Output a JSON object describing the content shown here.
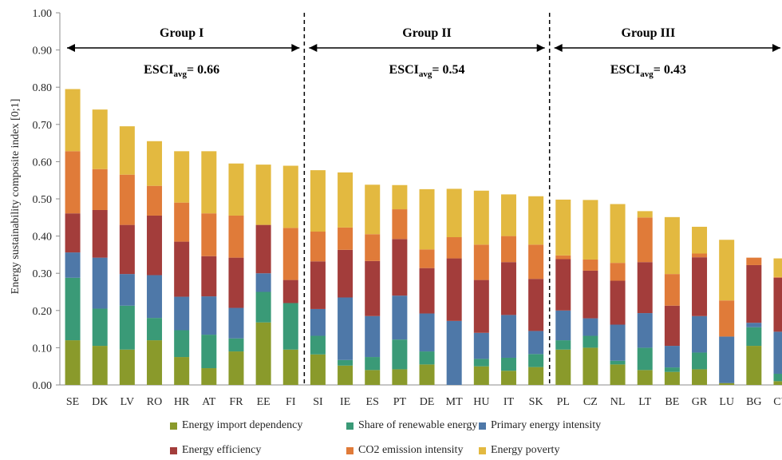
{
  "chart_data": {
    "type": "bar",
    "stacked": true,
    "ylabel": "Energy sustainability composite index [0;1]",
    "ylim": [
      0,
      1.0
    ],
    "yticks": [
      "0.00",
      "0.10",
      "0.20",
      "0.30",
      "0.40",
      "0.50",
      "0.60",
      "0.70",
      "0.80",
      "0.90",
      "1.00"
    ],
    "grid": false,
    "legend_position": "bottom",
    "categories": [
      "SE",
      "DK",
      "LV",
      "RO",
      "HR",
      "AT",
      "FR",
      "EE",
      "FI",
      "SI",
      "IE",
      "ES",
      "PT",
      "DE",
      "MT",
      "HU",
      "IT",
      "SK",
      "PL",
      "CZ",
      "NL",
      "LT",
      "BE",
      "GR",
      "LU",
      "BG",
      "CY"
    ],
    "series": [
      {
        "name": "Energy import dependency",
        "color": "#8a9a2b",
        "values": [
          0.12,
          0.105,
          0.095,
          0.12,
          0.075,
          0.045,
          0.09,
          0.168,
          0.095,
          0.082,
          0.052,
          0.04,
          0.042,
          0.055,
          0.0,
          0.05,
          0.038,
          0.048,
          0.095,
          0.1,
          0.055,
          0.04,
          0.035,
          0.042,
          0.005,
          0.105,
          0.01
        ]
      },
      {
        "name": "Share of renewable energy",
        "color": "#3a9a77",
        "values": [
          0.168,
          0.1,
          0.118,
          0.06,
          0.072,
          0.09,
          0.035,
          0.082,
          0.125,
          0.05,
          0.015,
          0.035,
          0.08,
          0.035,
          0.0,
          0.02,
          0.035,
          0.035,
          0.025,
          0.032,
          0.01,
          0.06,
          0.012,
          0.045,
          0.0,
          0.05,
          0.02
        ]
      },
      {
        "name": "Primary energy intensity",
        "color": "#4e78a8",
        "values": [
          0.068,
          0.137,
          0.085,
          0.115,
          0.09,
          0.103,
          0.082,
          0.05,
          0.0,
          0.072,
          0.168,
          0.11,
          0.118,
          0.102,
          0.172,
          0.07,
          0.115,
          0.062,
          0.08,
          0.047,
          0.097,
          0.093,
          0.058,
          0.098,
          0.125,
          0.012,
          0.113
        ]
      },
      {
        "name": "Energy efficiency",
        "color": "#a33d3b",
        "values": [
          0.105,
          0.128,
          0.132,
          0.16,
          0.148,
          0.108,
          0.135,
          0.13,
          0.062,
          0.128,
          0.128,
          0.148,
          0.152,
          0.122,
          0.168,
          0.142,
          0.142,
          0.14,
          0.138,
          0.128,
          0.118,
          0.137,
          0.108,
          0.158,
          0.0,
          0.155,
          0.145
        ]
      },
      {
        "name": "CO2 emission intensity",
        "color": "#e07b39",
        "values": [
          0.167,
          0.11,
          0.135,
          0.08,
          0.105,
          0.115,
          0.113,
          0.0,
          0.14,
          0.08,
          0.06,
          0.072,
          0.08,
          0.05,
          0.057,
          0.095,
          0.07,
          0.092,
          0.01,
          0.03,
          0.048,
          0.12,
          0.085,
          0.01,
          0.097,
          0.02,
          0.002
        ]
      },
      {
        "name": "Energy poverty",
        "color": "#e3b940",
        "values": [
          0.167,
          0.16,
          0.13,
          0.12,
          0.138,
          0.167,
          0.14,
          0.162,
          0.167,
          0.165,
          0.148,
          0.133,
          0.065,
          0.162,
          0.13,
          0.145,
          0.112,
          0.13,
          0.15,
          0.16,
          0.158,
          0.017,
          0.153,
          0.072,
          0.163,
          0.0,
          0.05
        ]
      }
    ],
    "groups": [
      {
        "label": "Group I",
        "esci_main": "ESCI",
        "esci_sub": "avg",
        "esci_value": "= 0.66",
        "start": 0,
        "end": 8
      },
      {
        "label": "Group II",
        "esci_main": "ESCI",
        "esci_sub": "avg",
        "esci_value": "= 0.54",
        "start": 9,
        "end": 17
      },
      {
        "label": "Group III",
        "esci_main": "ESCI",
        "esci_sub": "avg",
        "esci_value": "= 0.43",
        "start": 18,
        "end": 26
      }
    ]
  }
}
